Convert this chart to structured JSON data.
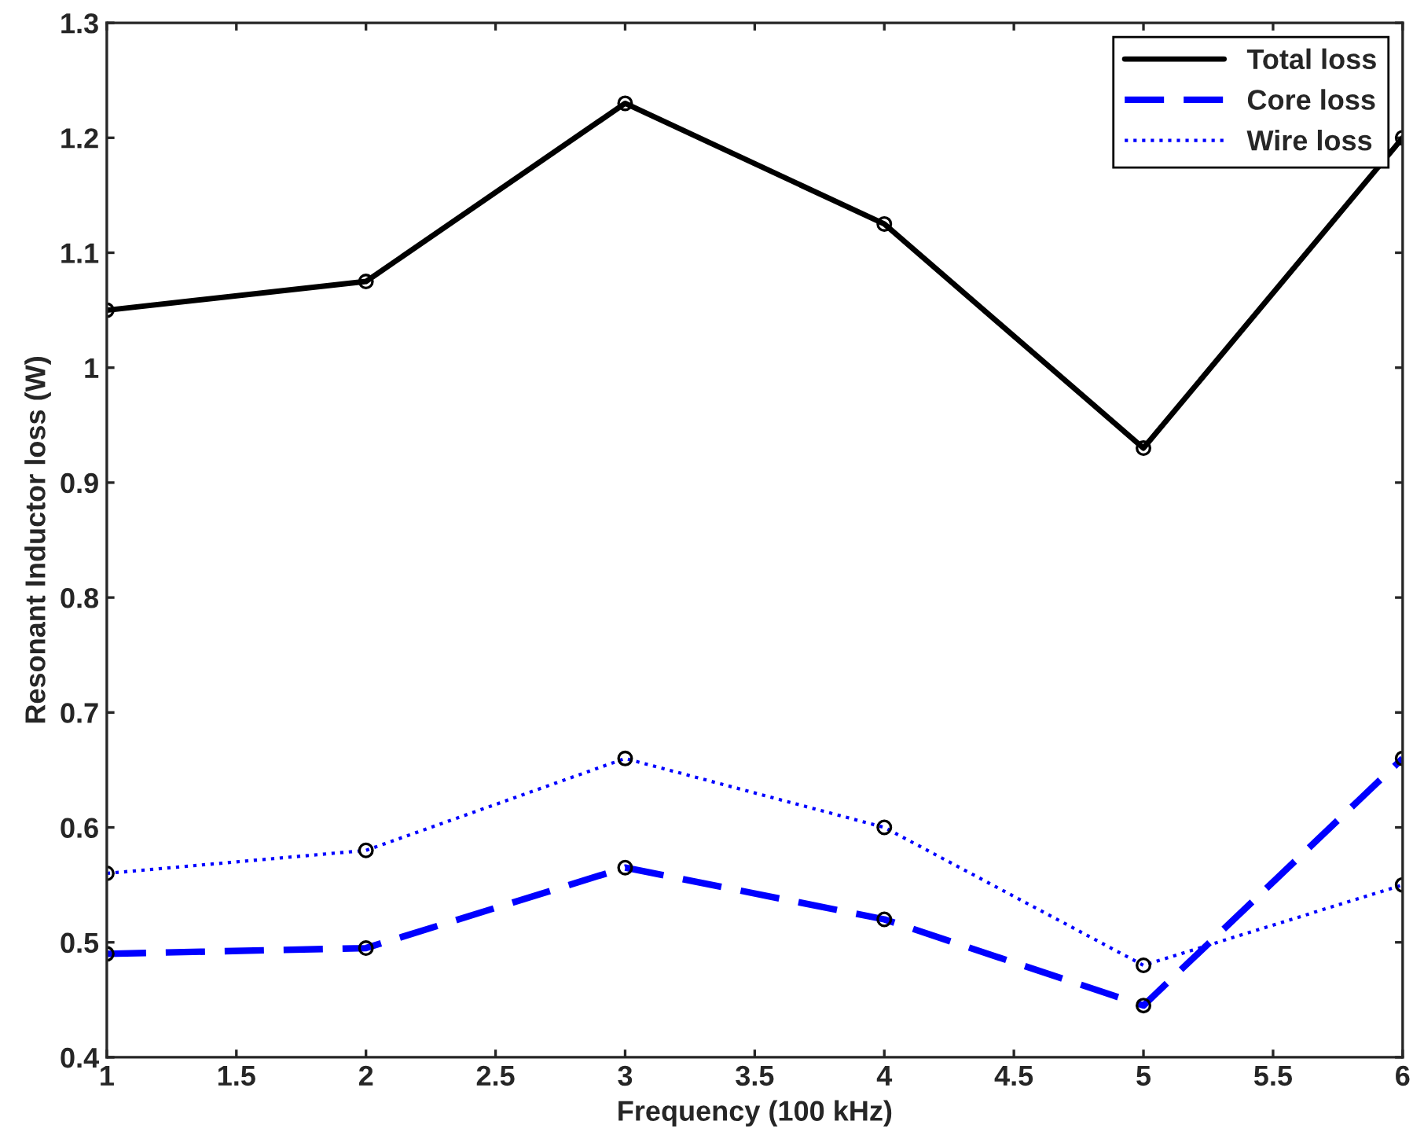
{
  "chart_data": {
    "type": "line",
    "xlabel": "Frequency (100 kHz)",
    "ylabel": "Resonant Inductor loss (W)",
    "x": [
      1,
      2,
      3,
      4,
      5,
      6
    ],
    "series": [
      {
        "name": "Total loss",
        "color": "#000000",
        "line_style": "solid",
        "values": [
          1.05,
          1.075,
          1.23,
          1.125,
          0.93,
          1.2
        ]
      },
      {
        "name": "Core loss",
        "color": "#0000ff",
        "line_style": "dashed",
        "values": [
          0.49,
          0.495,
          0.565,
          0.52,
          0.445,
          0.66
        ]
      },
      {
        "name": "Wire loss",
        "color": "#0000ff",
        "line_style": "dotted",
        "values": [
          0.56,
          0.58,
          0.66,
          0.6,
          0.48,
          0.55
        ]
      }
    ],
    "marker": "circle",
    "grid": false,
    "legend": "top right",
    "xlim": [
      1,
      6
    ],
    "xticks": [
      1,
      1.5,
      2,
      2.5,
      3,
      3.5,
      4,
      4.5,
      5,
      5.5,
      6
    ],
    "ylim": [
      0.4,
      1.3
    ],
    "yticks": [
      0.4,
      0.5,
      0.6,
      0.7,
      0.8,
      0.9,
      1,
      1.1,
      1.2,
      1.3
    ]
  }
}
